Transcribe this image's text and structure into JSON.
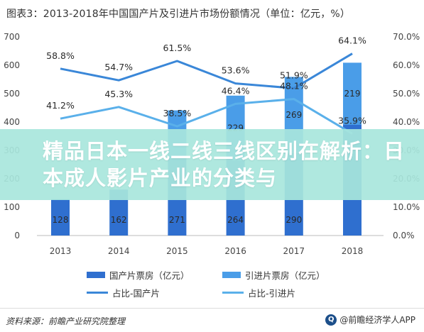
{
  "title": "图表3：2013-2018年中国国产片及引进片市场份额情况（单位：亿元，%）",
  "banner_text": "精品日本一线二线三线区别在解析：日本成人影片产业的分类与",
  "footer": {
    "source": "资料来源：前瞻产业研究院整理",
    "brand": "@前瞻经济学人APP",
    "brand_icon": "logo-icon"
  },
  "colors": {
    "domestic_bar": "#2f6fcf",
    "import_bar": "#4a9de8",
    "domestic_line": "#3a87d8",
    "import_line": "#5ab0ea"
  },
  "chart_data": {
    "type": "bar",
    "categories": [
      "2013",
      "2014",
      "2015",
      "2016",
      "2017",
      "2018"
    ],
    "series": [
      {
        "name": "国产片票房（亿元）",
        "type": "bar",
        "axis": "left",
        "values": [
          128,
          162,
          271,
          264,
          290,
          390
        ],
        "labels": [
          "128",
          "162",
          "271",
          "264",
          "290",
          ""
        ]
      },
      {
        "name": "引进片票房（亿元）",
        "type": "bar",
        "axis": "left",
        "values": [
          0,
          0,
          170,
          229,
          269,
          219
        ],
        "labels": [
          "",
          "",
          "",
          "229",
          "269",
          "219"
        ]
      },
      {
        "name": "占比-国产片",
        "type": "line",
        "axis": "right",
        "values": [
          58.8,
          54.7,
          61.5,
          53.6,
          51.9,
          64.1
        ],
        "labels": [
          "58.8%",
          "54.7%",
          "61.5%",
          "53.6%",
          "51.9%",
          "64.1%"
        ]
      },
      {
        "name": "占比-引进片",
        "type": "line",
        "axis": "right",
        "values": [
          41.2,
          45.3,
          38.5,
          46.4,
          48.1,
          35.9
        ],
        "labels": [
          "41.2%",
          "45.3%",
          "38.5%",
          "46.4%",
          "48.1%",
          "35.9%"
        ]
      }
    ],
    "y_left": {
      "min": 0,
      "max": 700,
      "ticks": [
        "0",
        "100",
        "200",
        "300",
        "400",
        "500",
        "600",
        "700"
      ]
    },
    "y_right": {
      "min": 0,
      "max": 70,
      "ticks": [
        "0.0%",
        "10.0%",
        "20.0%",
        "30.0%",
        "40.0%",
        "50.0%",
        "60.0%",
        "70.0%"
      ]
    },
    "grid": false,
    "legend_position": "bottom"
  }
}
